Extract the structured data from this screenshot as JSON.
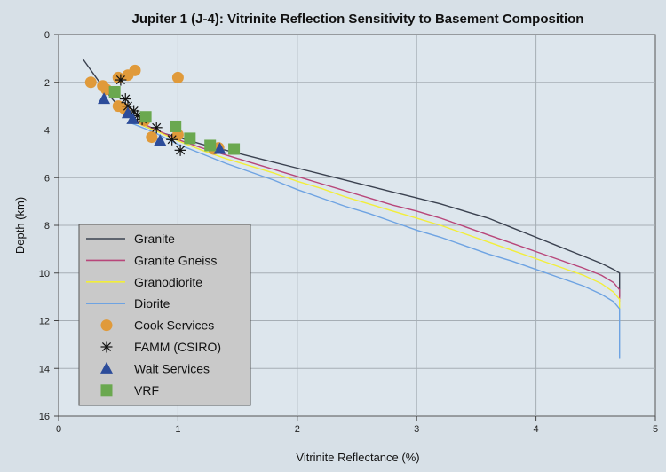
{
  "chart_data": {
    "type": "line",
    "title": "Jupiter 1 (J-4): Vitrinite Reflection Sensitivity to Basement Composition",
    "xlabel": "Vitrinite Reflectance (%)",
    "ylabel": "Depth (km)",
    "xlim": [
      0,
      5
    ],
    "ylim": [
      16,
      0
    ],
    "y_inverted": true,
    "grid": true,
    "legend_position": "bottom-left",
    "x_ticks": [
      "0",
      "1",
      "2",
      "3",
      "4",
      "5"
    ],
    "y_ticks": [
      "0",
      "2",
      "4",
      "6",
      "8",
      "10",
      "12",
      "14",
      "16"
    ],
    "series": [
      {
        "name": "Granite",
        "kind": "line",
        "color": "#3b4250",
        "points": [
          [
            0.2,
            1.0
          ],
          [
            0.3,
            1.7
          ],
          [
            0.4,
            2.4
          ],
          [
            0.5,
            3.0
          ],
          [
            0.6,
            3.4
          ],
          [
            0.7,
            3.8
          ],
          [
            0.85,
            4.1
          ],
          [
            1.0,
            4.3
          ],
          [
            1.2,
            4.6
          ],
          [
            1.4,
            4.85
          ],
          [
            1.6,
            5.1
          ],
          [
            1.8,
            5.35
          ],
          [
            2.0,
            5.6
          ],
          [
            2.2,
            5.85
          ],
          [
            2.4,
            6.1
          ],
          [
            2.6,
            6.35
          ],
          [
            2.8,
            6.6
          ],
          [
            3.0,
            6.85
          ],
          [
            3.2,
            7.1
          ],
          [
            3.4,
            7.4
          ],
          [
            3.6,
            7.7
          ],
          [
            3.8,
            8.1
          ],
          [
            4.0,
            8.5
          ],
          [
            4.2,
            8.9
          ],
          [
            4.4,
            9.3
          ],
          [
            4.55,
            9.6
          ],
          [
            4.65,
            9.85
          ],
          [
            4.7,
            10.0
          ],
          [
            4.7,
            11.0
          ]
        ]
      },
      {
        "name": "Granite Gneiss",
        "kind": "line",
        "color": "#b8467a",
        "points": [
          [
            0.6,
            3.5
          ],
          [
            0.8,
            3.95
          ],
          [
            1.0,
            4.4
          ],
          [
            1.2,
            4.75
          ],
          [
            1.4,
            5.05
          ],
          [
            1.6,
            5.35
          ],
          [
            1.8,
            5.65
          ],
          [
            2.0,
            5.95
          ],
          [
            2.2,
            6.25
          ],
          [
            2.4,
            6.55
          ],
          [
            2.6,
            6.85
          ],
          [
            2.8,
            7.15
          ],
          [
            3.0,
            7.4
          ],
          [
            3.2,
            7.7
          ],
          [
            3.4,
            8.05
          ],
          [
            3.6,
            8.4
          ],
          [
            3.8,
            8.75
          ],
          [
            4.0,
            9.1
          ],
          [
            4.2,
            9.45
          ],
          [
            4.4,
            9.8
          ],
          [
            4.55,
            10.1
          ],
          [
            4.65,
            10.4
          ],
          [
            4.7,
            10.7
          ],
          [
            4.7,
            11.2
          ]
        ]
      },
      {
        "name": "Granodiorite",
        "kind": "line",
        "color": "#f2ee3a",
        "points": [
          [
            0.6,
            3.6
          ],
          [
            0.8,
            4.0
          ],
          [
            1.0,
            4.45
          ],
          [
            1.2,
            4.85
          ],
          [
            1.4,
            5.2
          ],
          [
            1.6,
            5.5
          ],
          [
            1.8,
            5.8
          ],
          [
            2.0,
            6.15
          ],
          [
            2.2,
            6.45
          ],
          [
            2.4,
            6.8
          ],
          [
            2.6,
            7.1
          ],
          [
            2.8,
            7.4
          ],
          [
            3.0,
            7.7
          ],
          [
            3.2,
            8.0
          ],
          [
            3.4,
            8.35
          ],
          [
            3.6,
            8.7
          ],
          [
            3.8,
            9.05
          ],
          [
            4.0,
            9.4
          ],
          [
            4.2,
            9.75
          ],
          [
            4.4,
            10.1
          ],
          [
            4.55,
            10.45
          ],
          [
            4.65,
            10.8
          ],
          [
            4.7,
            11.1
          ],
          [
            4.7,
            11.5
          ]
        ]
      },
      {
        "name": "Diorite",
        "kind": "line",
        "color": "#6ea3e2",
        "points": [
          [
            0.6,
            3.7
          ],
          [
            0.8,
            4.1
          ],
          [
            1.0,
            4.6
          ],
          [
            1.2,
            5.0
          ],
          [
            1.4,
            5.4
          ],
          [
            1.6,
            5.75
          ],
          [
            1.8,
            6.1
          ],
          [
            2.0,
            6.5
          ],
          [
            2.2,
            6.85
          ],
          [
            2.4,
            7.2
          ],
          [
            2.6,
            7.5
          ],
          [
            2.8,
            7.85
          ],
          [
            3.0,
            8.2
          ],
          [
            3.2,
            8.5
          ],
          [
            3.4,
            8.85
          ],
          [
            3.6,
            9.2
          ],
          [
            3.8,
            9.5
          ],
          [
            4.0,
            9.85
          ],
          [
            4.2,
            10.2
          ],
          [
            4.4,
            10.55
          ],
          [
            4.55,
            10.9
          ],
          [
            4.65,
            11.2
          ],
          [
            4.7,
            11.5
          ],
          [
            4.7,
            13.6
          ]
        ]
      },
      {
        "name": "Cook Services",
        "kind": "scatter",
        "marker": "circle",
        "color": "#e09a3a",
        "points": [
          [
            0.27,
            2.0
          ],
          [
            0.37,
            2.15
          ],
          [
            0.4,
            2.3
          ],
          [
            0.5,
            1.8
          ],
          [
            0.58,
            1.7
          ],
          [
            0.64,
            1.5
          ],
          [
            1.0,
            1.8
          ],
          [
            0.5,
            3.0
          ],
          [
            0.55,
            3.1
          ],
          [
            0.72,
            3.6
          ],
          [
            0.78,
            4.3
          ],
          [
            1.0,
            4.2
          ],
          [
            1.3,
            4.8
          ],
          [
            1.34,
            4.75
          ]
        ]
      },
      {
        "name": "FAMM (CSIRO)",
        "kind": "scatter",
        "marker": "asterisk",
        "color": "#111111",
        "points": [
          [
            0.52,
            1.9
          ],
          [
            0.56,
            2.7
          ],
          [
            0.58,
            3.0
          ],
          [
            0.63,
            3.2
          ],
          [
            0.66,
            3.4
          ],
          [
            0.7,
            3.55
          ],
          [
            0.82,
            3.9
          ],
          [
            0.95,
            4.4
          ],
          [
            1.02,
            4.85
          ]
        ]
      },
      {
        "name": "Wait Services",
        "kind": "scatter",
        "marker": "triangle",
        "color": "#2c4c9a",
        "points": [
          [
            0.38,
            2.7
          ],
          [
            0.58,
            3.3
          ],
          [
            0.62,
            3.55
          ],
          [
            0.85,
            4.45
          ],
          [
            1.35,
            4.8
          ]
        ]
      },
      {
        "name": "VRF",
        "kind": "scatter",
        "marker": "square",
        "color": "#6aa84f",
        "points": [
          [
            0.47,
            2.4
          ],
          [
            0.73,
            3.45
          ],
          [
            0.98,
            3.85
          ],
          [
            1.1,
            4.35
          ],
          [
            1.27,
            4.65
          ],
          [
            1.47,
            4.8
          ]
        ]
      }
    ]
  }
}
